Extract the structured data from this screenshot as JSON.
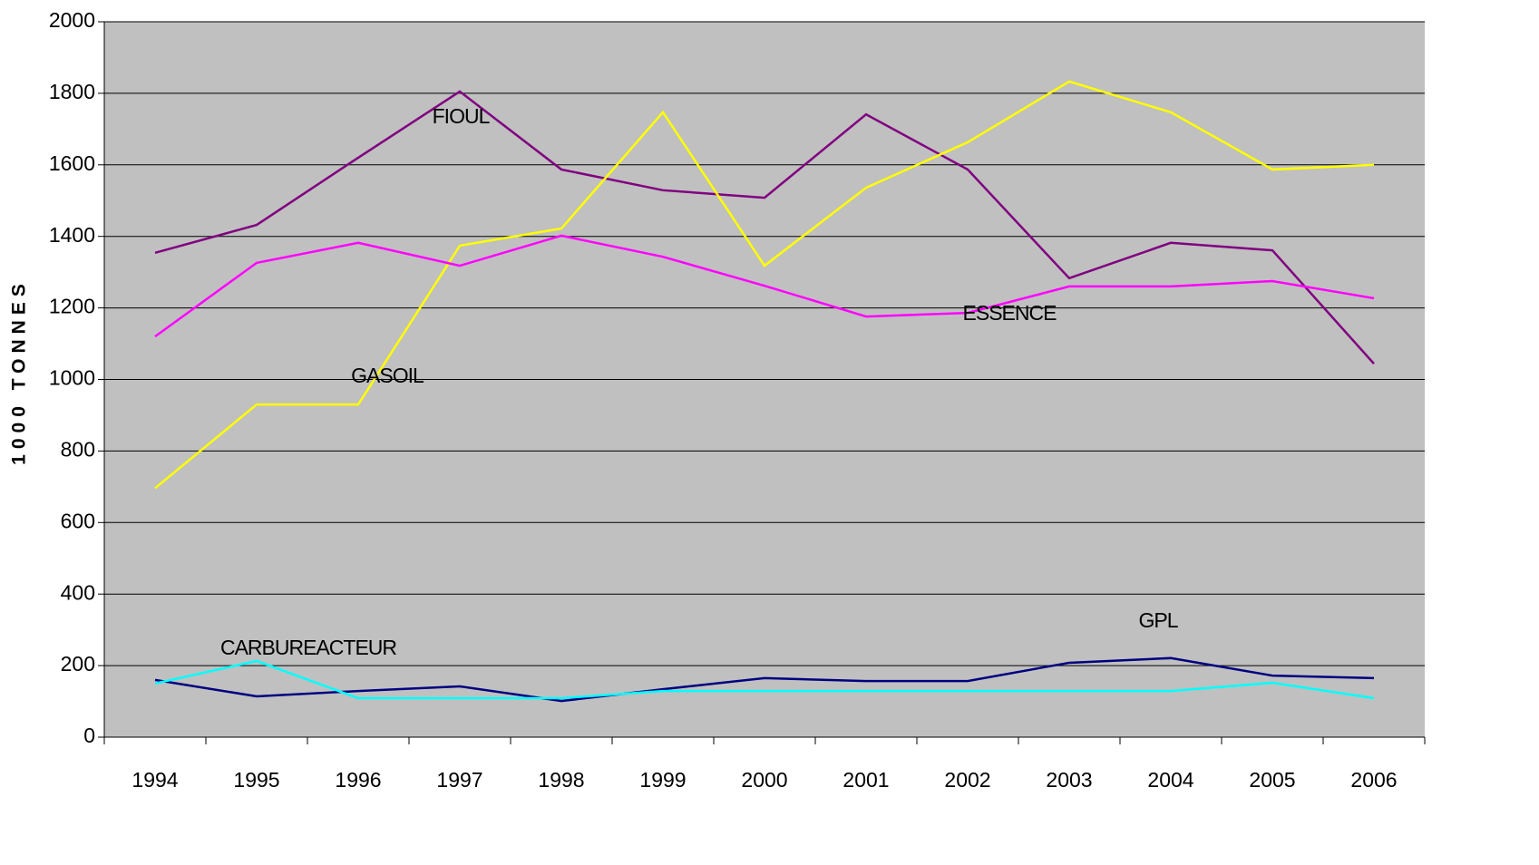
{
  "chart_data": {
    "type": "line",
    "ylabel": "1000 TONNES",
    "categories": [
      "1994",
      "1995",
      "1996",
      "1997",
      "1998",
      "1999",
      "2000",
      "2001",
      "2002",
      "2003",
      "2004",
      "2005",
      "2006"
    ],
    "series": [
      {
        "name": "FIOUL",
        "color": "#800080",
        "values": [
          1354,
          1432,
          1620,
          1805,
          1587,
          1529,
          1508,
          1741,
          1587,
          1283,
          1382,
          1361,
          1044
        ]
      },
      {
        "name": "GASOIL",
        "color": "#ffff00",
        "values": [
          696,
          930,
          930,
          1374,
          1422,
          1747,
          1318,
          1536,
          1663,
          1833,
          1747,
          1587,
          1600
        ]
      },
      {
        "name": "ESSENCE",
        "color": "#ff00ff",
        "values": [
          1120,
          1326,
          1382,
          1318,
          1402,
          1343,
          1262,
          1176,
          1186,
          1260,
          1260,
          1275,
          1227
        ]
      },
      {
        "name": "GPL",
        "color": "#000080",
        "values": [
          160,
          114,
          129,
          142,
          101,
          134,
          165,
          157,
          157,
          208,
          221,
          172,
          165
        ]
      },
      {
        "name": "CARBUREACTEUR",
        "color": "#00ffff",
        "values": [
          150,
          213,
          109,
          109,
          109,
          129,
          129,
          129,
          129,
          129,
          129,
          152,
          109
        ]
      }
    ],
    "ylim": [
      0,
      2000
    ],
    "yticks": [
      0,
      200,
      400,
      600,
      800,
      1000,
      1200,
      1400,
      1600,
      1800,
      2000
    ],
    "grid": true,
    "background": "#c0c0c0"
  }
}
